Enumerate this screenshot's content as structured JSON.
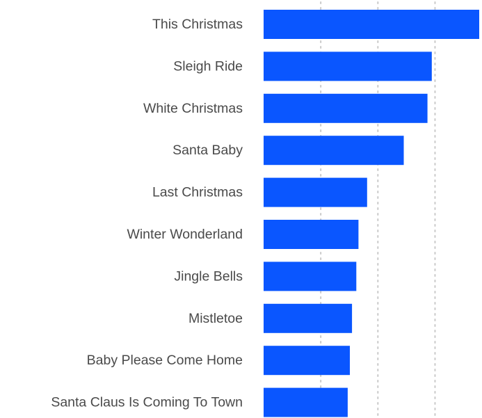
{
  "chart_data": {
    "type": "bar",
    "orientation": "horizontal",
    "title": "",
    "xlabel": "",
    "ylabel": "",
    "categories": [
      "This Christmas",
      "Sleigh Ride",
      "White Christmas",
      "Santa Baby",
      "Last Christmas",
      "Winter Wonderland",
      "Jingle Bells",
      "Mistletoe",
      "Baby Please Come Home",
      "Santa Claus Is Coming To Town"
    ],
    "values": [
      100,
      78,
      76,
      65,
      48,
      44,
      43,
      41,
      40,
      39
    ],
    "xlim": [
      0,
      100
    ],
    "gridlines": [
      26.5,
      53,
      79.5
    ],
    "grid": true,
    "colors": {
      "bar": "#0a56ff",
      "label": "#4a4a4a",
      "grid": "#c9c9c9"
    }
  }
}
